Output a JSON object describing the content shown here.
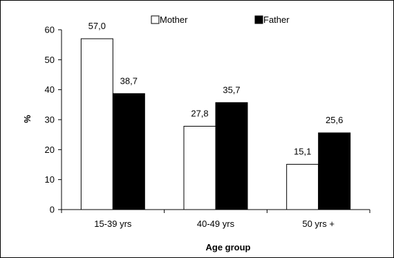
{
  "chart_data": {
    "type": "bar",
    "categories": [
      "15-39 yrs",
      "40-49 yrs",
      "50 yrs +"
    ],
    "series": [
      {
        "name": "Mother",
        "values": [
          57.0,
          27.8,
          15.1
        ],
        "labels": [
          "57,0",
          "27,8",
          "15,1"
        ],
        "color": "#ffffff"
      },
      {
        "name": "Father",
        "values": [
          38.7,
          35.7,
          25.6
        ],
        "labels": [
          "38,7",
          "35,7",
          "25,6"
        ],
        "color": "#000000"
      }
    ],
    "xlabel": "Age group",
    "ylabel": "%",
    "ylim": [
      0,
      60
    ],
    "yticks": [
      0,
      10,
      20,
      30,
      40,
      50,
      60
    ],
    "grid": false,
    "legend_position": "top"
  }
}
